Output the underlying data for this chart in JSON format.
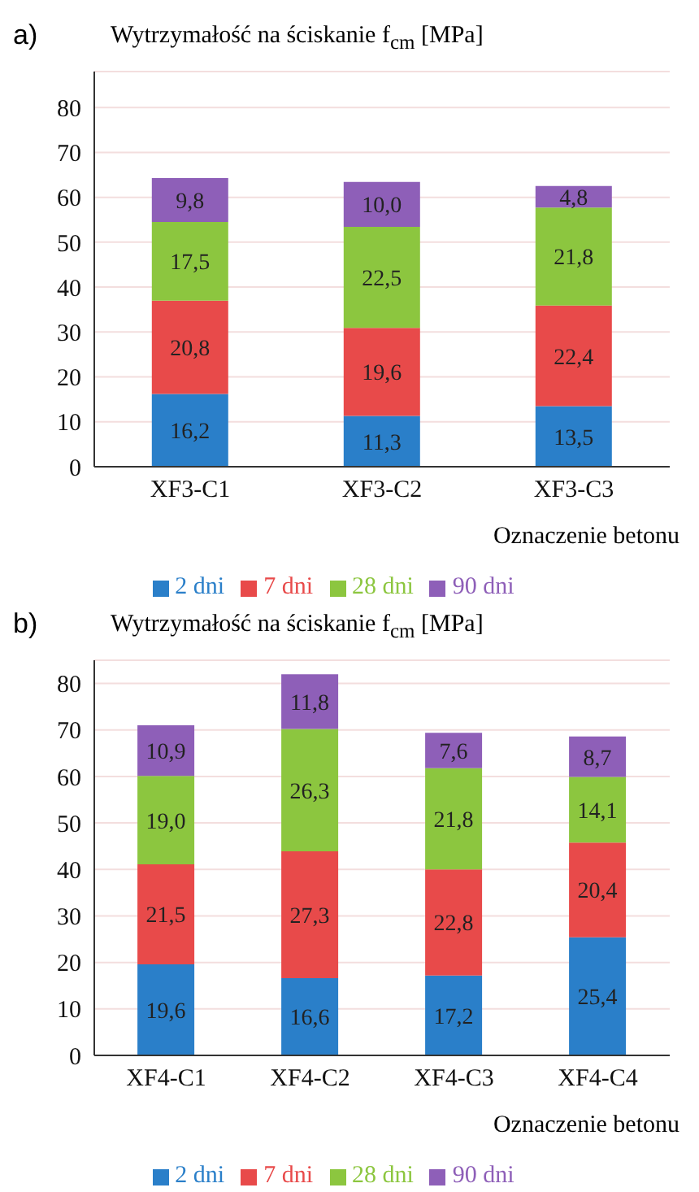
{
  "chart_data": [
    {
      "type": "bar",
      "title": "a)",
      "ylabel": "Wytrzymałość na ściskanie f$_{cm}$ [MPa]",
      "xlabel": "Oznaczenie betonu",
      "categories": [
        "XF3-C1",
        "XF3-C2",
        "XF3-C3"
      ],
      "stacked": true,
      "ylim": [
        0,
        88
      ],
      "yticks": [
        0,
        10,
        20,
        30,
        40,
        50,
        60,
        70,
        80
      ],
      "grid": "y",
      "legend": "bottom",
      "series": [
        {
          "name": "2 dni",
          "color": "#2a7fc9",
          "values": [
            16.2,
            11.3,
            13.5
          ],
          "value_labels": [
            "16,2",
            "11,3",
            "13,5"
          ]
        },
        {
          "name": "7 dni",
          "color": "#e84a4a",
          "values": [
            20.8,
            19.6,
            22.4
          ],
          "value_labels": [
            "20,8",
            "19,6",
            "22,4"
          ]
        },
        {
          "name": "28 dni",
          "color": "#8cc63f",
          "values": [
            17.5,
            22.5,
            21.8
          ],
          "value_labels": [
            "17,5",
            "22,5",
            "21,8"
          ]
        },
        {
          "name": "90 dni",
          "color": "#8e5fb8",
          "values": [
            9.8,
            10.0,
            4.8
          ],
          "value_labels": [
            "9,8",
            "10,0",
            "4,8"
          ]
        }
      ]
    },
    {
      "type": "bar",
      "title": "b)",
      "ylabel": "Wytrzymałość na ściskanie f$_{cm}$ [MPa]",
      "xlabel": "Oznaczenie betonu",
      "categories": [
        "XF4-C1",
        "XF4-C2",
        "XF4-C3",
        "XF4-C4"
      ],
      "stacked": true,
      "ylim": [
        0,
        85
      ],
      "yticks": [
        0,
        10,
        20,
        30,
        40,
        50,
        60,
        70,
        80
      ],
      "grid": "y",
      "legend": "bottom",
      "series": [
        {
          "name": "2 dni",
          "color": "#2a7fc9",
          "values": [
            19.6,
            16.6,
            17.2,
            25.4
          ],
          "value_labels": [
            "19,6",
            "16,6",
            "17,2",
            "25,4"
          ]
        },
        {
          "name": "7 dni",
          "color": "#e84a4a",
          "values": [
            21.5,
            27.3,
            22.8,
            20.4
          ],
          "value_labels": [
            "21,5",
            "27,3",
            "22,8",
            "20,4"
          ]
        },
        {
          "name": "28 dni",
          "color": "#8cc63f",
          "values": [
            19.0,
            26.3,
            21.8,
            14.1
          ],
          "value_labels": [
            "19,0",
            "26,3",
            "21,8",
            "14,1"
          ]
        },
        {
          "name": "90 dni",
          "color": "#8e5fb8",
          "values": [
            10.9,
            11.8,
            7.6,
            8.7
          ],
          "value_labels": [
            "10,9",
            "11,8",
            "7,6",
            "8,7"
          ]
        }
      ]
    }
  ]
}
